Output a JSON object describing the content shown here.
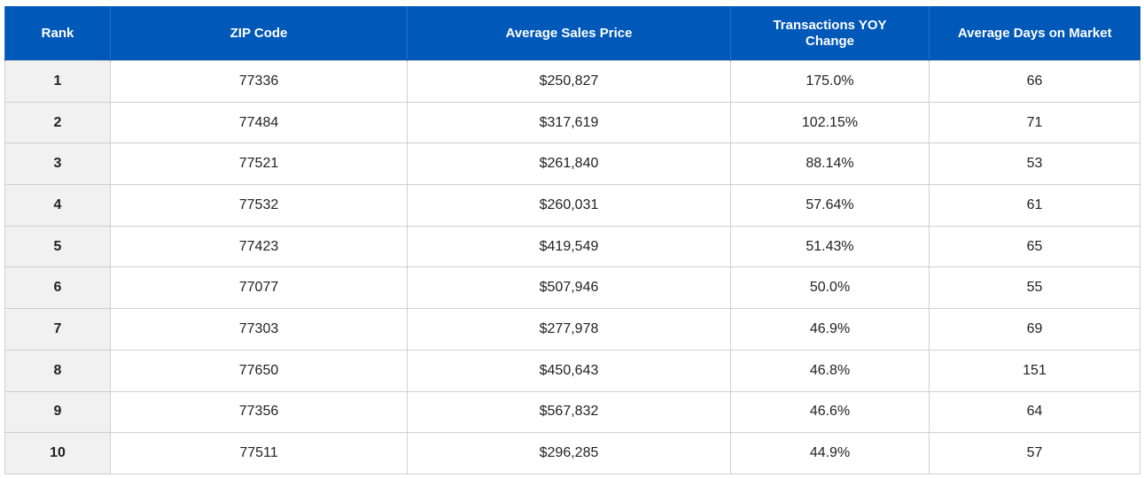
{
  "table": {
    "headers": [
      "Rank",
      "ZIP Code",
      "Average Sales Price",
      "Transactions YOY Change",
      "Average Days on Market"
    ],
    "rows": [
      [
        "1",
        "77336",
        "$250,827",
        "175.0%",
        "66"
      ],
      [
        "2",
        "77484",
        "$317,619",
        "102.15%",
        "71"
      ],
      [
        "3",
        "77521",
        "$261,840",
        "88.14%",
        "53"
      ],
      [
        "4",
        "77532",
        "$260,031",
        "57.64%",
        "61"
      ],
      [
        "5",
        "77423",
        "$419,549",
        "51.43%",
        "65"
      ],
      [
        "6",
        "77077",
        "$507,946",
        "50.0%",
        "55"
      ],
      [
        "7",
        "77303",
        "$277,978",
        "46.9%",
        "69"
      ],
      [
        "8",
        "77650",
        "$450,643",
        "46.8%",
        "151"
      ],
      [
        "9",
        "77356",
        "$567,832",
        "46.6%",
        "64"
      ],
      [
        "10",
        "77511",
        "$296,285",
        "44.9%",
        "57"
      ]
    ]
  }
}
